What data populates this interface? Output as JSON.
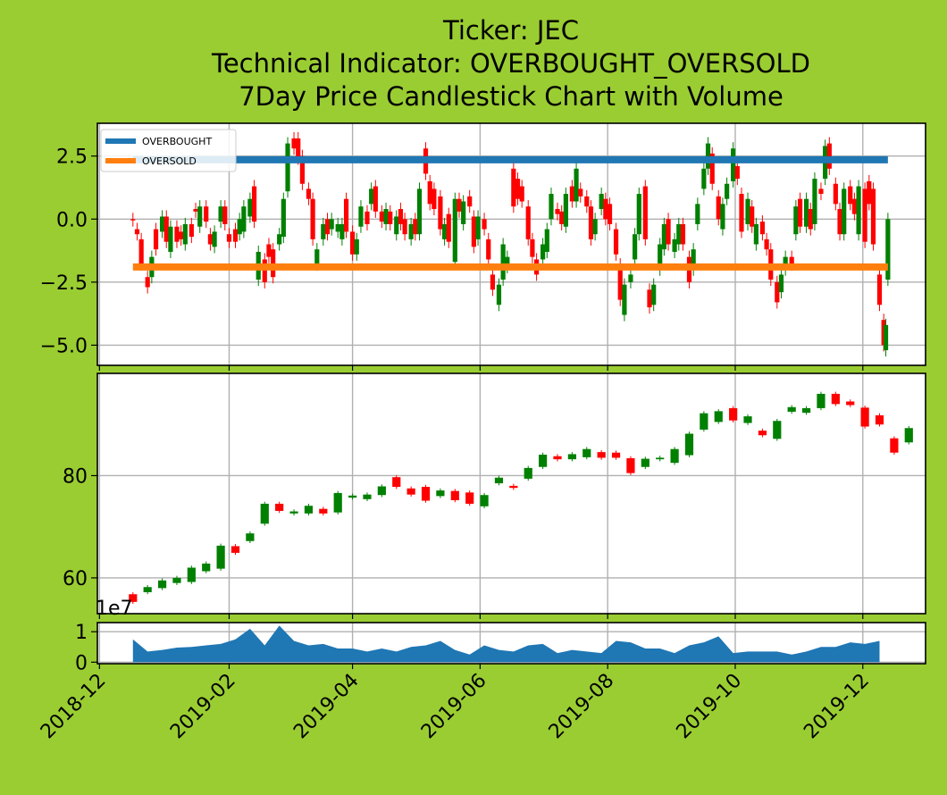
{
  "chart_data": [
    {
      "type": "line",
      "panel": "indicator",
      "title": "Ticker: JEC\nTechnical Indicator: OVERBOUGHT_OVERSOLD\n7Day Price Candlestick Chart with Volume",
      "title_lines": [
        "Ticker: JEC",
        "Technical Indicator: OVERBOUGHT_OVERSOLD",
        "7Day Price Candlestick Chart with Volume"
      ],
      "xlim": [
        "2018-11-30",
        "2019-12-31"
      ],
      "ylim": [
        -5.8,
        3.8
      ],
      "yticks": [
        2.5,
        0.0,
        -2.5,
        -5.0
      ],
      "ytick_labels": [
        "2.5",
        "0.0",
        "−2.5",
        "−5.0"
      ],
      "grid": true,
      "legend_placement": "top-left",
      "series": [
        {
          "name": "OVERBOUGHT",
          "color": "#1f77b4",
          "x": [
            "2018-12-17",
            "2019-12-13"
          ],
          "y": [
            2.35,
            2.35
          ]
        },
        {
          "name": "OVERSOLD",
          "color": "#ff7f0e",
          "x": [
            "2018-12-17",
            "2019-12-13"
          ],
          "y": [
            -1.9,
            -1.9
          ]
        }
      ],
      "candles": [
        [
          "2018-12-17",
          0,
          -0.05
        ],
        [
          "2018-12-19",
          -0.4,
          -0.6
        ],
        [
          "2018-12-21",
          -0.8,
          -1.8
        ],
        [
          "2018-12-24",
          -2.3,
          -2.7
        ],
        [
          "2018-12-26",
          -2.3,
          -1.5
        ],
        [
          "2018-12-28",
          -0.4,
          -1.2
        ],
        [
          "2018-12-31",
          -0.5,
          0.1
        ],
        [
          "2019-01-02",
          0.1,
          -0.9
        ],
        [
          "2019-01-04",
          -1.3,
          -0.3
        ],
        [
          "2019-01-07",
          -0.3,
          -0.9
        ],
        [
          "2019-01-09",
          -0.5,
          -0.8
        ],
        [
          "2019-01-11",
          -1.0,
          -0.2
        ],
        [
          "2019-01-14",
          -0.2,
          -0.7
        ],
        [
          "2019-01-16",
          0.4,
          0.3
        ],
        [
          "2019-01-18",
          -0.3,
          0.5
        ],
        [
          "2019-01-21",
          0.5,
          -0.1
        ],
        [
          "2019-01-23",
          -0.6,
          -1.0
        ],
        [
          "2019-01-25",
          -1.1,
          -0.5
        ],
        [
          "2019-01-28",
          -0.1,
          0.5
        ],
        [
          "2019-01-30",
          0.5,
          -0.2
        ],
        [
          "2019-02-01",
          -0.6,
          -0.9
        ],
        [
          "2019-02-04",
          -0.4,
          -0.9
        ],
        [
          "2019-02-06",
          -0.6,
          0.0
        ],
        [
          "2019-02-08",
          -0.5,
          0.5
        ],
        [
          "2019-02-11",
          0.1,
          0.8
        ],
        [
          "2019-02-13",
          1.3,
          -0.1
        ],
        [
          "2019-02-15",
          -2.4,
          -1.3
        ],
        [
          "2019-02-18",
          -1.6,
          -2.5
        ],
        [
          "2019-02-20",
          -1.0,
          -1.5
        ],
        [
          "2019-02-22",
          -1.2,
          -2.3
        ],
        [
          "2019-02-25",
          -1.0,
          -0.6
        ],
        [
          "2019-02-27",
          -0.7,
          0.8
        ],
        [
          "2019-03-01",
          1.1,
          3.0
        ],
        [
          "2019-03-04",
          3.2,
          2.8
        ],
        [
          "2019-03-06",
          3.2,
          2.4
        ],
        [
          "2019-03-08",
          2.5,
          1.4
        ],
        [
          "2019-03-11",
          1.2,
          0.8
        ],
        [
          "2019-03-13",
          0.8,
          -0.8
        ],
        [
          "2019-03-15",
          -1.8,
          -1.2
        ],
        [
          "2019-03-18",
          -0.8,
          -0.2
        ],
        [
          "2019-03-20",
          0.0,
          -0.6
        ],
        [
          "2019-03-22",
          -0.4,
          0.0
        ],
        [
          "2019-03-25",
          -0.5,
          -0.2
        ],
        [
          "2019-03-27",
          -0.8,
          -0.2
        ],
        [
          "2019-03-29",
          0.8,
          -0.5
        ],
        [
          "2019-04-01",
          -0.5,
          -1.4
        ],
        [
          "2019-04-03",
          -1.4,
          -0.8
        ],
        [
          "2019-04-05",
          -0.3,
          0.5
        ],
        [
          "2019-04-08",
          0.3,
          -0.2
        ],
        [
          "2019-04-10",
          0.6,
          1.2
        ],
        [
          "2019-04-12",
          1.3,
          0.3
        ],
        [
          "2019-04-15",
          0.3,
          -0.1
        ],
        [
          "2019-04-17",
          -0.2,
          0.4
        ],
        [
          "2019-04-19",
          0.3,
          -0.2
        ],
        [
          "2019-04-22",
          -0.6,
          0.1
        ],
        [
          "2019-04-24",
          0.4,
          -0.2
        ],
        [
          "2019-04-26",
          0.0,
          -0.6
        ],
        [
          "2019-04-29",
          -0.8,
          -0.2
        ],
        [
          "2019-05-01",
          0.0,
          -0.6
        ],
        [
          "2019-05-03",
          -0.6,
          1.2
        ],
        [
          "2019-05-06",
          2.8,
          1.8
        ],
        [
          "2019-05-08",
          1.5,
          0.6
        ],
        [
          "2019-05-10",
          1.2,
          0.4
        ],
        [
          "2019-05-13",
          0.9,
          -0.4
        ],
        [
          "2019-05-15",
          -0.8,
          -0.2
        ],
        [
          "2019-05-17",
          0.2,
          -0.9
        ],
        [
          "2019-05-20",
          -1.7,
          0.8
        ],
        [
          "2019-05-22",
          0.8,
          0.3
        ],
        [
          "2019-05-24",
          -0.2,
          0.7
        ],
        [
          "2019-05-27",
          0.9,
          0.5
        ],
        [
          "2019-05-29",
          0.1,
          -1.1
        ],
        [
          "2019-05-31",
          -0.8,
          0.1
        ],
        [
          "2019-06-03",
          0.0,
          -0.4
        ],
        [
          "2019-06-05",
          -0.8,
          -1.6
        ],
        [
          "2019-06-07",
          -2.2,
          -2.8
        ],
        [
          "2019-06-10",
          -3.4,
          -2.6
        ],
        [
          "2019-06-12",
          -2.4,
          -1.0
        ],
        [
          "2019-06-14",
          -1.9,
          -1.5
        ],
        [
          "2019-06-17",
          2.0,
          0.5
        ],
        [
          "2019-06-19",
          1.6,
          0.8
        ],
        [
          "2019-06-21",
          1.3,
          0.7
        ],
        [
          "2019-06-24",
          0.5,
          -0.8
        ],
        [
          "2019-06-26",
          -0.8,
          -1.5
        ],
        [
          "2019-06-28",
          -1.6,
          -2.2
        ],
        [
          "2019-07-01",
          -1.6,
          -1.0
        ],
        [
          "2019-07-03",
          -1.3,
          -0.4
        ],
        [
          "2019-07-05",
          0.0,
          1.0
        ],
        [
          "2019-07-08",
          0.4,
          0.2
        ],
        [
          "2019-07-10",
          0.3,
          -0.2
        ],
        [
          "2019-07-12",
          -0.3,
          1.0
        ],
        [
          "2019-07-15",
          1.3,
          0.7
        ],
        [
          "2019-07-17",
          0.7,
          2.0
        ],
        [
          "2019-07-19",
          1.2,
          0.9
        ],
        [
          "2019-07-22",
          0.9,
          0.5
        ],
        [
          "2019-07-24",
          0.5,
          -0.8
        ],
        [
          "2019-07-26",
          -0.6,
          0.0
        ],
        [
          "2019-07-29",
          0.4,
          1.0
        ],
        [
          "2019-07-31",
          0.8,
          0.0
        ],
        [
          "2019-08-02",
          0.6,
          -0.2
        ],
        [
          "2019-08-05",
          -0.4,
          -1.4
        ],
        [
          "2019-08-07",
          -1.8,
          -3.2
        ],
        [
          "2019-08-09",
          -3.8,
          -2.6
        ],
        [
          "2019-08-12",
          -2.5,
          -2.2
        ],
        [
          "2019-08-14",
          -1.6,
          -0.6
        ],
        [
          "2019-08-16",
          -0.6,
          1.0
        ],
        [
          "2019-08-19",
          1.3,
          -0.8
        ],
        [
          "2019-08-21",
          -2.8,
          -3.5
        ],
        [
          "2019-08-23",
          -3.4,
          -2.6
        ],
        [
          "2019-08-26",
          -2.0,
          -1.0
        ],
        [
          "2019-08-28",
          -1.2,
          -0.2
        ],
        [
          "2019-08-30",
          0.0,
          -1.0
        ],
        [
          "2019-09-02",
          -1.3,
          -0.8
        ],
        [
          "2019-09-04",
          -1.0,
          -0.2
        ],
        [
          "2019-09-06",
          -0.2,
          -1.0
        ],
        [
          "2019-09-09",
          -1.5,
          -2.5
        ],
        [
          "2019-09-11",
          -2.0,
          -1.2
        ],
        [
          "2019-09-13",
          -0.2,
          0.6
        ],
        [
          "2019-09-16",
          1.2,
          2.0
        ],
        [
          "2019-09-18",
          2.0,
          3.0
        ],
        [
          "2019-09-20",
          2.6,
          1.4
        ],
        [
          "2019-09-23",
          0.9,
          0.0
        ],
        [
          "2019-09-25",
          -0.4,
          0.6
        ],
        [
          "2019-09-27",
          0.8,
          1.4
        ],
        [
          "2019-09-30",
          1.5,
          2.8
        ],
        [
          "2019-10-02",
          2.1,
          1.6
        ],
        [
          "2019-10-04",
          1.0,
          -0.5
        ],
        [
          "2019-10-07",
          -0.2,
          0.8
        ],
        [
          "2019-10-09",
          0.5,
          -0.3
        ],
        [
          "2019-10-11",
          -1.0,
          -0.2
        ],
        [
          "2019-10-14",
          -0.1,
          -0.6
        ],
        [
          "2019-10-16",
          -0.8,
          -1.2
        ],
        [
          "2019-10-18",
          -1.2,
          -2.4
        ],
        [
          "2019-10-21",
          -2.5,
          -3.3
        ],
        [
          "2019-10-23",
          -2.9,
          -2.2
        ],
        [
          "2019-10-25",
          -2.0,
          -1.5
        ],
        [
          "2019-10-28",
          -1.5,
          -1.8
        ],
        [
          "2019-10-30",
          -0.6,
          0.5
        ],
        [
          "2019-11-01",
          0.8,
          -0.3
        ],
        [
          "2019-11-04",
          -0.3,
          0.8
        ],
        [
          "2019-11-06",
          0.4,
          -0.4
        ],
        [
          "2019-11-08",
          -0.2,
          1.6
        ],
        [
          "2019-11-11",
          1.2,
          1.0
        ],
        [
          "2019-11-13",
          1.6,
          2.9
        ],
        [
          "2019-11-15",
          3.0,
          2.0
        ],
        [
          "2019-11-18",
          1.4,
          0.6
        ],
        [
          "2019-11-20",
          0.4,
          -0.6
        ],
        [
          "2019-11-22",
          -0.6,
          1.2
        ],
        [
          "2019-11-25",
          1.3,
          0.6
        ],
        [
          "2019-11-27",
          0.8,
          0.2
        ],
        [
          "2019-11-29",
          -0.6,
          1.3
        ],
        [
          "2019-12-02",
          1.2,
          -0.9
        ],
        [
          "2019-12-04",
          1.5,
          0.6
        ],
        [
          "2019-12-06",
          1.2,
          -1.0
        ],
        [
          "2019-12-09",
          -2.2,
          -3.4
        ],
        [
          "2019-12-11",
          -4.0,
          -5.0
        ],
        [
          "2019-12-12",
          -5.2,
          -4.2
        ],
        [
          "2019-12-13",
          -2.4,
          0.0
        ]
      ]
    },
    {
      "type": "bar",
      "panel": "candlestick",
      "ylim": [
        53,
        100
      ],
      "yticks": [
        80,
        60
      ],
      "ytick_labels": [
        "80",
        "60"
      ],
      "grid": true,
      "candles": [
        [
          "2018-12-17",
          56.8,
          55.3
        ],
        [
          "2018-12-24",
          57.2,
          58.2
        ],
        [
          "2018-12-31",
          58.0,
          59.5
        ],
        [
          "2019-01-07",
          59.0,
          60.0
        ],
        [
          "2019-01-14",
          59.2,
          62.0
        ],
        [
          "2019-01-21",
          61.3,
          62.8
        ],
        [
          "2019-01-28",
          61.8,
          66.3
        ],
        [
          "2019-02-04",
          66.2,
          64.9
        ],
        [
          "2019-02-11",
          67.2,
          68.7
        ],
        [
          "2019-02-18",
          70.6,
          74.5
        ],
        [
          "2019-02-25",
          74.5,
          73.1
        ],
        [
          "2019-03-04",
          72.6,
          73.0
        ],
        [
          "2019-03-11",
          72.6,
          74.1
        ],
        [
          "2019-03-18",
          73.5,
          72.6
        ],
        [
          "2019-03-25",
          72.8,
          76.6
        ],
        [
          "2019-04-01",
          75.7,
          76.1
        ],
        [
          "2019-04-08",
          75.4,
          76.3
        ],
        [
          "2019-04-15",
          76.2,
          77.9
        ],
        [
          "2019-04-22",
          79.7,
          77.8
        ],
        [
          "2019-04-29",
          77.5,
          76.3
        ],
        [
          "2019-05-06",
          77.8,
          75.1
        ],
        [
          "2019-05-13",
          76.0,
          77.1
        ],
        [
          "2019-05-20",
          77.0,
          75.2
        ],
        [
          "2019-05-27",
          76.7,
          74.5
        ],
        [
          "2019-06-03",
          74.0,
          76.2
        ],
        [
          "2019-06-10",
          78.5,
          79.6
        ],
        [
          "2019-06-17",
          78.0,
          77.6
        ],
        [
          "2019-06-24",
          79.4,
          81.5
        ],
        [
          "2019-07-01",
          81.7,
          84.1
        ],
        [
          "2019-07-08",
          83.8,
          83.2
        ],
        [
          "2019-07-15",
          83.2,
          84.2
        ],
        [
          "2019-07-22",
          83.6,
          85.2
        ],
        [
          "2019-07-29",
          84.6,
          83.5
        ],
        [
          "2019-08-05",
          84.5,
          83.5
        ],
        [
          "2019-08-12",
          83.4,
          80.5
        ],
        [
          "2019-08-19",
          81.7,
          83.3
        ],
        [
          "2019-08-26",
          83.2,
          83.5
        ],
        [
          "2019-09-02",
          82.5,
          85.2
        ],
        [
          "2019-09-09",
          84.0,
          88.2
        ],
        [
          "2019-09-16",
          89.0,
          92.2
        ],
        [
          "2019-09-23",
          90.5,
          92.6
        ],
        [
          "2019-09-30",
          93.2,
          90.8
        ],
        [
          "2019-10-07",
          90.3,
          91.6
        ],
        [
          "2019-10-14",
          88.8,
          87.9
        ],
        [
          "2019-10-21",
          87.2,
          90.7
        ],
        [
          "2019-10-28",
          92.5,
          93.4
        ],
        [
          "2019-11-04",
          92.3,
          93.2
        ],
        [
          "2019-11-11",
          93.2,
          96.0
        ],
        [
          "2019-11-18",
          96.0,
          94.0
        ],
        [
          "2019-11-25",
          94.5,
          93.8
        ],
        [
          "2019-12-02",
          93.3,
          89.6
        ],
        [
          "2019-12-09",
          91.8,
          90.0
        ],
        [
          "2019-12-16",
          87.3,
          84.5
        ],
        [
          "2019-12-23",
          86.5,
          89.3
        ]
      ]
    },
    {
      "type": "area",
      "panel": "volume",
      "offset_label": "1e7",
      "ylim": [
        -0.05,
        1.3
      ],
      "yticks": [
        1,
        0
      ],
      "ytick_labels": [
        "1",
        "0"
      ],
      "xticks": [
        "2018-12-01",
        "2019-02-01",
        "2019-04-01",
        "2019-06-01",
        "2019-08-01",
        "2019-10-01",
        "2019-12-01"
      ],
      "xtick_labels": [
        "2018-12",
        "2019-02",
        "2019-04",
        "2019-06",
        "2019-08",
        "2019-10",
        "2019-12"
      ],
      "grid": true,
      "color": "#1f77b4",
      "x": [
        "2018-12-17",
        "2018-12-24",
        "2018-12-31",
        "2019-01-07",
        "2019-01-14",
        "2019-01-21",
        "2019-01-28",
        "2019-02-04",
        "2019-02-11",
        "2019-02-18",
        "2019-02-25",
        "2019-03-04",
        "2019-03-11",
        "2019-03-18",
        "2019-03-25",
        "2019-04-01",
        "2019-04-08",
        "2019-04-15",
        "2019-04-22",
        "2019-04-29",
        "2019-05-06",
        "2019-05-13",
        "2019-05-20",
        "2019-05-27",
        "2019-06-03",
        "2019-06-10",
        "2019-06-17",
        "2019-06-24",
        "2019-07-01",
        "2019-07-08",
        "2019-07-15",
        "2019-07-22",
        "2019-07-29",
        "2019-08-05",
        "2019-08-12",
        "2019-08-19",
        "2019-08-26",
        "2019-09-02",
        "2019-09-09",
        "2019-09-16",
        "2019-09-23",
        "2019-09-30",
        "2019-10-07",
        "2019-10-14",
        "2019-10-21",
        "2019-10-28",
        "2019-11-04",
        "2019-11-11",
        "2019-11-18",
        "2019-11-25",
        "2019-12-02",
        "2019-12-09"
      ],
      "y": [
        0.75,
        0.35,
        0.4,
        0.48,
        0.5,
        0.55,
        0.6,
        0.75,
        1.1,
        0.55,
        1.2,
        0.7,
        0.55,
        0.6,
        0.45,
        0.45,
        0.35,
        0.45,
        0.35,
        0.5,
        0.55,
        0.7,
        0.4,
        0.25,
        0.55,
        0.4,
        0.35,
        0.55,
        0.6,
        0.3,
        0.4,
        0.35,
        0.3,
        0.7,
        0.65,
        0.45,
        0.45,
        0.3,
        0.55,
        0.65,
        0.85,
        0.3,
        0.35,
        0.35,
        0.35,
        0.25,
        0.35,
        0.5,
        0.5,
        0.65,
        0.6,
        0.7
      ]
    }
  ]
}
